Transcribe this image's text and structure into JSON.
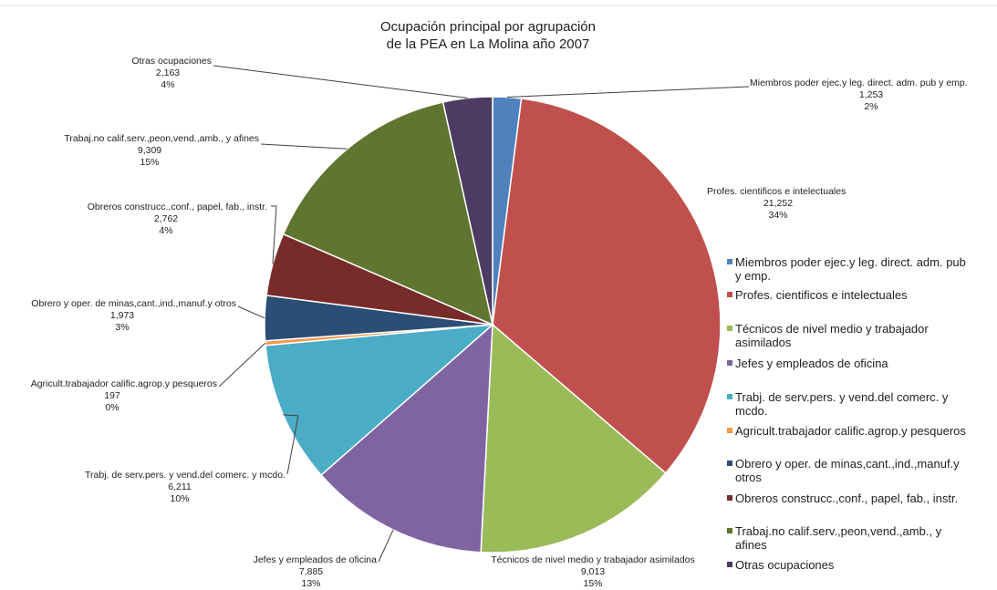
{
  "chart_data": {
    "type": "pie",
    "title": "Ocupación principal por agrupación",
    "subtitle": "de la PEA en La Molina año 2007",
    "legend_position": "right",
    "slices": [
      {
        "label": "Miembros poder ejec.y leg. direct. adm. pub y emp.",
        "value": 1253,
        "value_text": "1,253",
        "percent_text": "2%",
        "color": "#4F81BD"
      },
      {
        "label": "Profes. cientificos e intelectuales",
        "value": 21252,
        "value_text": "21,252",
        "percent_text": "34%",
        "color": "#C0504D"
      },
      {
        "label": "Técnicos de nivel medio y trabajador asimilados",
        "value": 9013,
        "value_text": "9,013",
        "percent_text": "15%",
        "color": "#9BBB59"
      },
      {
        "label": "Jefes y empleados de oficina",
        "value": 7885,
        "value_text": "7,885",
        "percent_text": "13%",
        "color": "#8064A2"
      },
      {
        "label": "Trabj. de serv.pers. y vend.del comerc. y mcdo.",
        "value": 6211,
        "value_text": "6,211",
        "percent_text": "10%",
        "color": "#4BACC6"
      },
      {
        "label": "Agricult.trabajador calific.agrop.y pesqueros",
        "value": 197,
        "value_text": "197",
        "percent_text": "0%",
        "color": "#F79646"
      },
      {
        "label": "Obrero y oper. de minas,cant.,ind.,manuf.y otros",
        "value": 1973,
        "value_text": "1,973",
        "percent_text": "3%",
        "color": "#2C4D75"
      },
      {
        "label": "Obreros construcc.,conf., papel, fab., instr.",
        "value": 2762,
        "value_text": "2,762",
        "percent_text": "4%",
        "color": "#772C2A"
      },
      {
        "label": "Trabaj.no calif.serv.,peon,vend.,amb., y afines",
        "value": 9309,
        "value_text": "9,309",
        "percent_text": "15%",
        "color": "#5F7530"
      },
      {
        "label": "Otras ocupaciones",
        "value": 2163,
        "value_text": "2,163",
        "percent_text": "4%",
        "color": "#4D3B62"
      }
    ],
    "legend": [
      [
        "Miembros poder ejec.y leg. direct. adm. pub",
        "y emp."
      ],
      [
        "Profes. cientificos e intelectuales"
      ],
      [
        "Técnicos de nivel medio y trabajador",
        "asimilados"
      ],
      [
        "Jefes y empleados de oficina"
      ],
      [
        "Trabj. de serv.pers. y vend.del comerc. y",
        "mcdo."
      ],
      [
        "Agricult.trabajador calific.agrop.y pesqueros"
      ],
      [
        "Obrero y oper. de minas,cant.,ind.,manuf.y",
        "otros"
      ],
      [
        "Obreros construcc.,conf., papel, fab., instr."
      ],
      [
        "Trabaj.no calif.serv.,peon,vend.,amb., y",
        "afines"
      ],
      [
        "Otras ocupaciones"
      ]
    ]
  }
}
